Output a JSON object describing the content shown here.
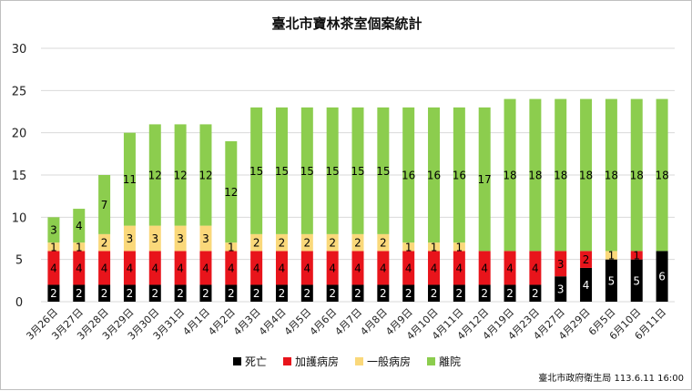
{
  "chart_data": {
    "type": "bar",
    "stacked": true,
    "title": "臺北市寶林茶室個案統計",
    "categories": [
      "3月26日",
      "3月27日",
      "3月28日",
      "3月29日",
      "3月30日",
      "3月31日",
      "4月1日",
      "4月2日",
      "4月3日",
      "4月4日",
      "4月5日",
      "4月6日",
      "4月7日",
      "4月8日",
      "4月9日",
      "4月10日",
      "4月11日",
      "4月12日",
      "4月19日",
      "4月23日",
      "4月27日",
      "4月29日",
      "6月5日",
      "6月10日",
      "6月11日"
    ],
    "series": [
      {
        "name": "死亡",
        "color": "#000000",
        "label_color": "#ffffff",
        "values": [
          2,
          2,
          2,
          2,
          2,
          2,
          2,
          2,
          2,
          2,
          2,
          2,
          2,
          2,
          2,
          2,
          2,
          2,
          2,
          2,
          3,
          4,
          5,
          5,
          6
        ]
      },
      {
        "name": "加護病房",
        "color": "#e8141b",
        "label_color": "#000000",
        "values": [
          4,
          4,
          4,
          4,
          4,
          4,
          4,
          4,
          4,
          4,
          4,
          4,
          4,
          4,
          4,
          4,
          4,
          4,
          4,
          4,
          3,
          2,
          0,
          1,
          0
        ]
      },
      {
        "name": "一般病房",
        "color": "#fad87a",
        "label_color": "#000000",
        "values": [
          1,
          1,
          2,
          3,
          3,
          3,
          3,
          1,
          2,
          2,
          2,
          2,
          2,
          2,
          1,
          1,
          1,
          0,
          0,
          0,
          0,
          0,
          1,
          0,
          0
        ]
      },
      {
        "name": "離院",
        "color": "#8ccd4e",
        "label_color": "#000000",
        "values": [
          3,
          4,
          7,
          11,
          12,
          12,
          12,
          12,
          15,
          15,
          15,
          15,
          15,
          15,
          16,
          16,
          16,
          17,
          18,
          18,
          18,
          18,
          18,
          18,
          18
        ]
      }
    ],
    "ylim": [
      0,
      30
    ],
    "yticks": [
      0,
      5,
      10,
      15,
      20,
      25,
      30
    ],
    "grid": true,
    "legend_position": "bottom"
  },
  "source_note": "臺北市政府衛生局 113.6.11 16:00"
}
